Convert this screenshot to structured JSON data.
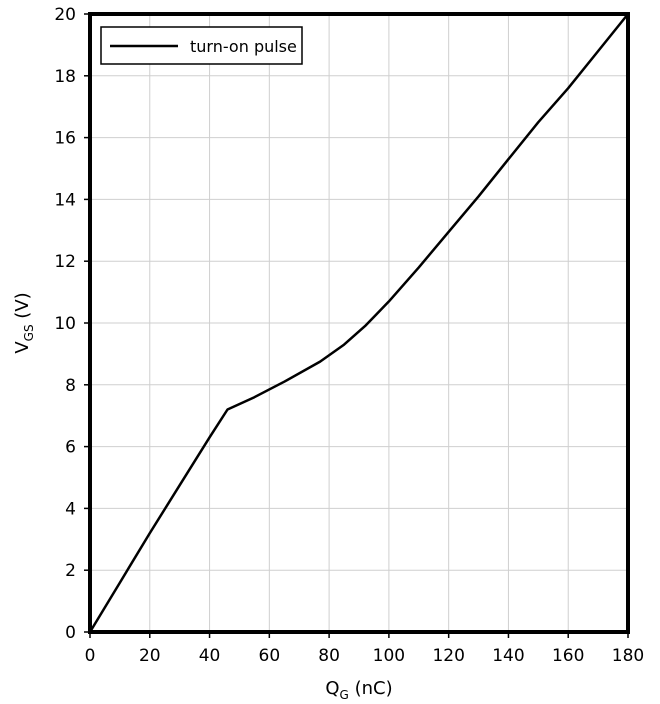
{
  "chart_data": {
    "type": "line",
    "xlabel": {
      "main": "Q",
      "sub": "G",
      "unit": " (nC)"
    },
    "ylabel": {
      "main": "V",
      "sub": "GS",
      "unit": " (V)"
    },
    "xlim": [
      0,
      180
    ],
    "ylim": [
      0,
      20
    ],
    "xticks": [
      0,
      20,
      40,
      60,
      80,
      100,
      120,
      140,
      160,
      180
    ],
    "yticks": [
      0,
      2,
      4,
      6,
      8,
      10,
      12,
      14,
      16,
      18,
      20
    ],
    "grid": true,
    "legend": {
      "placement": "top-left",
      "entries": [
        "turn-on pulse"
      ]
    },
    "series": [
      {
        "name": "turn-on pulse",
        "color": "#000000",
        "x": [
          0,
          10,
          20,
          30,
          40,
          46,
          55,
          65,
          77,
          85,
          92,
          100,
          110,
          120,
          130,
          140,
          150,
          160,
          170,
          180
        ],
        "y": [
          0,
          1.6,
          3.2,
          4.75,
          6.3,
          7.2,
          7.6,
          8.1,
          8.75,
          9.3,
          9.9,
          10.7,
          11.8,
          12.95,
          14.1,
          15.3,
          16.5,
          17.6,
          18.8,
          20.0
        ]
      }
    ]
  }
}
